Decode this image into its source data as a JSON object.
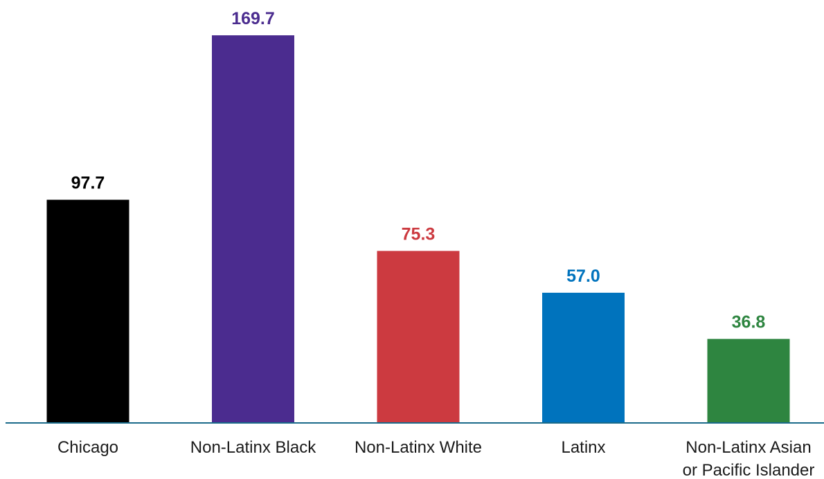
{
  "chart_data": {
    "type": "bar",
    "categories": [
      [
        "Chicago"
      ],
      [
        "Non-Latinx Black"
      ],
      [
        "Non-Latinx White"
      ],
      [
        "Latinx"
      ],
      [
        "Non-Latinx Asian",
        "or Pacific Islander"
      ]
    ],
    "values": [
      97.7,
      169.7,
      75.3,
      57.0,
      36.8
    ],
    "value_labels": [
      "97.7",
      "169.7",
      "75.3",
      "57.0",
      "36.8"
    ],
    "colors": [
      "#000000",
      "#4b2c8f",
      "#cc3a40",
      "#0073bd",
      "#2e8540"
    ],
    "axis_color": "#1a6a8a",
    "title": "",
    "xlabel": "",
    "ylabel": "",
    "ylim": [
      0,
      169.7
    ],
    "grid": false,
    "legend": "none"
  }
}
